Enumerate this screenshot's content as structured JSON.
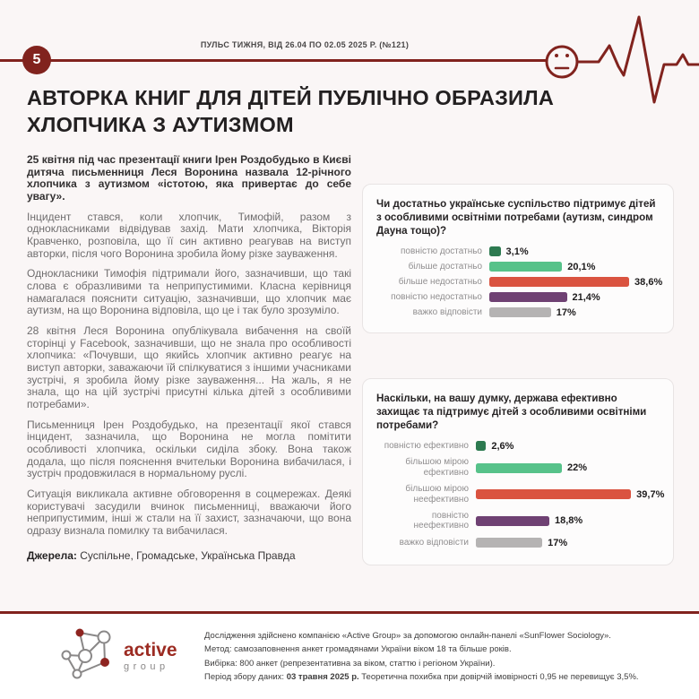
{
  "page": {
    "number": "5",
    "header_title": "ПУЛЬС ТИЖНЯ, ВІД 26.04 ПО 02.05 2025 Р. (№121)"
  },
  "title": "АВТОРКА КНИГ ДЛЯ ДІТЕЙ ПУБЛІЧНО ОБРАЗИЛА ХЛОПЧИКА З АУТИЗМОМ",
  "article": {
    "lead": "25 квітня під час презентації книги Ірен Роздобудько в Києві дитяча письменниця Леся Воронина назвала 12-річного хлопчика з аутизмом «істотою, яка привертає до себе увагу».",
    "paragraphs": [
      "Інцидент стався, коли хлопчик, Тимофій, разом з однокласниками відвідував захід. Мати хлопчика, Вікторія Кравченко, розповіла, що її син активно реагував на виступ авторки, після чого Воронина зробила йому різке зауваження.",
      "Однокласники Тимофія підтримали його, зазначивши, що такі слова є образливими та неприпустимими. Класна керівниця намагалася пояснити ситуацію, зазначивши, що хлопчик має аутизм, на що Воронина відповіла, що це і так було зрозуміло.",
      "28 квітня Леся Воронина опублікувала вибачення на своїй сторінці у Facebook, зазначивши, що не знала про особливості хлопчика: «Почувши, що якийсь хлопчик активно реагує на виступ авторки, заважаючи їй спілкуватися з іншими учасниками зустрічі, я зробила йому різке зауваження... На жаль, я не знала, що на цій зустрічі присутні кілька дітей з особливими потребами».",
      "Письменниця Ірен Роздобудько, на презентації якої стався інцидент, зазначила, що Воронина не могла помітити особливості хлопчика, оскільки сиділа збоку. Вона також додала, що після пояснення вчительки Воронина вибачилася, і зустріч продовжилася в нормальному руслі.",
      "Ситуація викликала активне обговорення в соцмережах. Деякі користувачі засудили вчинок письменниці, вважаючи його неприпустимим, інші ж стали на її захист, зазначаючи, що вона одразу визнала помилку та вибачилася."
    ],
    "sources_label": "Джерела:",
    "sources": " Суспільне, Громадське, Українська Правда"
  },
  "chart_data": [
    {
      "type": "bar",
      "orientation": "horizontal",
      "title": "Чи достатньо українське суспільство підтримує дітей з особливими освітніми потребами (аутизм, синдром Дауна тощо)?",
      "categories": [
        "повністю достатньо",
        "більше достатньо",
        "більше недостатньо",
        "повністю недостатньо",
        "важко відповісти"
      ],
      "values": [
        3.1,
        20.1,
        38.6,
        21.4,
        17
      ],
      "value_labels": [
        "3,1%",
        "20,1%",
        "38,6%",
        "21,4%",
        "17%"
      ],
      "colors": [
        "#2d7a50",
        "#57c28a",
        "#da5340",
        "#6f4173",
        "#b5b3b3"
      ],
      "xlim": [
        0,
        47
      ],
      "grid": false,
      "legend": false
    },
    {
      "type": "bar",
      "orientation": "horizontal",
      "title": "Наскільки, на вашу думку, держава ефективно захищає та підтримує дітей з особливими освітніми потребами?",
      "categories": [
        "повністю ефективно",
        "більшою мірою ефективно",
        "більшою мірою неефективно",
        "повністю неефективно",
        "важко відповісти"
      ],
      "values": [
        2.6,
        22,
        39.7,
        18.8,
        17
      ],
      "value_labels": [
        "2,6%",
        "22%",
        "39,7%",
        "18,8%",
        "17%"
      ],
      "colors": [
        "#2d7a50",
        "#57c28a",
        "#da5340",
        "#6f4173",
        "#b5b3b3"
      ],
      "xlim": [
        0,
        47
      ],
      "grid": false,
      "legend": false
    }
  ],
  "footer": {
    "logo_title": "active",
    "logo_subtitle": "group",
    "line1": "Дослідження здійснено компанією «Active Group» за допомогою онлайн-панелі «SunFlower Sociology».",
    "line2": "Метод: самозаповнення анкет громадянами України віком 18 та більше років.",
    "line3": "Вибірка: 800 анкет (репрезентативна за віком, статтю і регіоном України).",
    "line4_prefix": "Період збору даних: ",
    "line4_bold": "03 травня 2025 р.",
    "line4_rest": " Теоретична похибка при довірчій імовірності 0,95 не перевищує 3,5%."
  },
  "colors": {
    "accent_dark_red": "#81231e",
    "bar_dark_green": "#2d7a50",
    "bar_green": "#57c28a",
    "bar_red": "#da5340",
    "bar_purple": "#6f4173",
    "bar_gray": "#b5b3b3",
    "logo_red": "#9c2b22",
    "page_background": "#faf6f6",
    "card_background": "#fdfcfc"
  }
}
